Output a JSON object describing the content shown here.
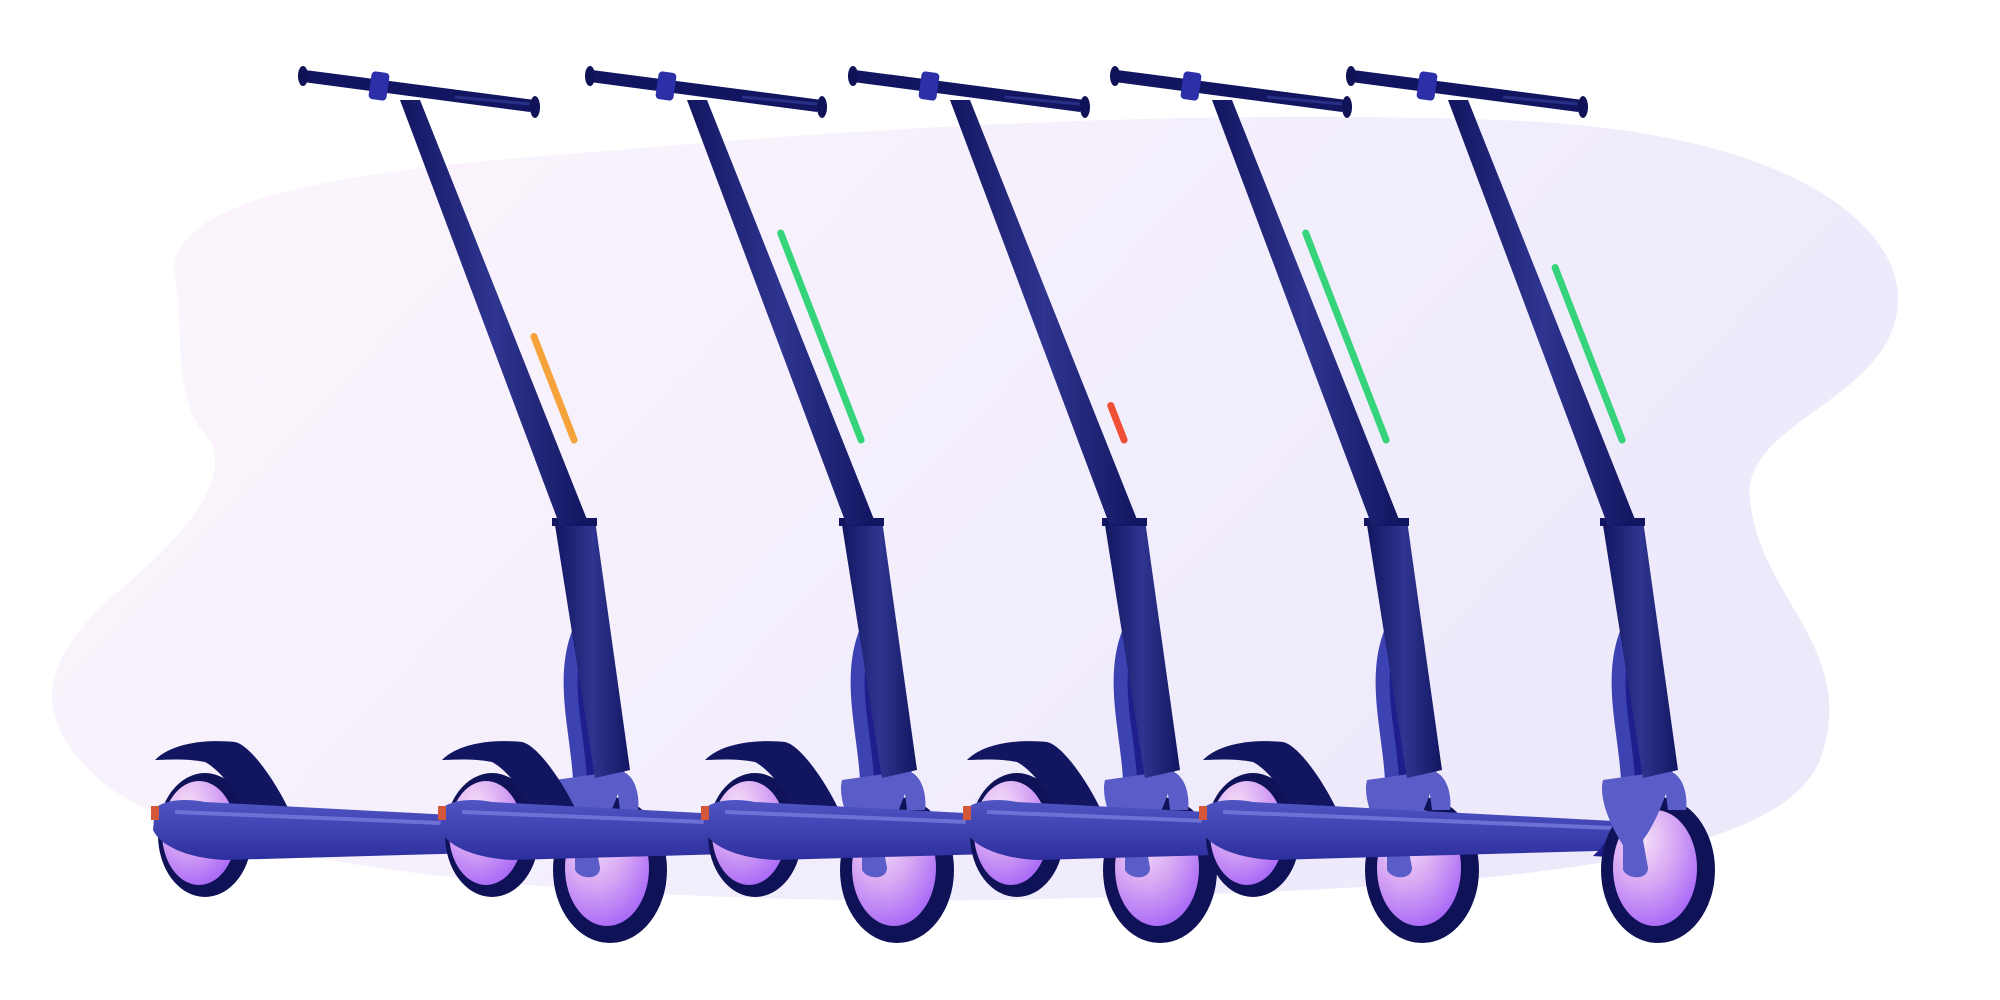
{
  "scene": {
    "description_icon": "electric-scooter-row-illustration",
    "background_colors": [
      "#fdf6fd",
      "#ede9fb"
    ],
    "scooter_colors": {
      "stem_dark": "#121660",
      "stem_light": "#2a2f86",
      "deck": "#3b3fae",
      "deck_dark": "#1e1e8c",
      "fork": "#5a5cc8",
      "wheel_outer": "#0f1257",
      "wheel_inner_light": "#f3d8f6",
      "wheel_inner_dark": "#a15cf7",
      "brake": "#d4573a"
    },
    "scooters": [
      {
        "id": "scooter-1",
        "battery_color": "#f6a23a",
        "battery_level": 0.45
      },
      {
        "id": "scooter-2",
        "battery_color": "#36d47a",
        "battery_level": 0.9
      },
      {
        "id": "scooter-3",
        "battery_color": "#ef4f34",
        "battery_level": 0.15
      },
      {
        "id": "scooter-4",
        "battery_color": "#36d47a",
        "battery_level": 0.9
      },
      {
        "id": "scooter-5",
        "battery_color": "#36d47a",
        "battery_level": 0.75
      }
    ]
  }
}
